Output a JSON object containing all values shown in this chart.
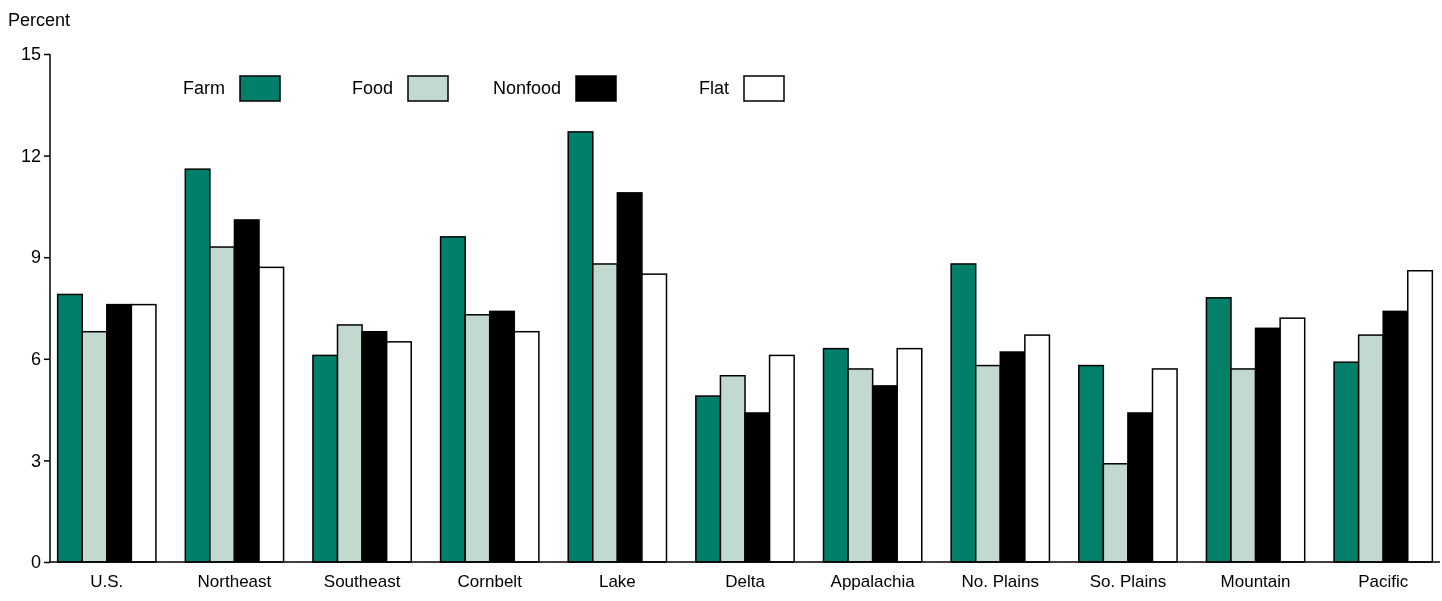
{
  "chart_data": {
    "type": "bar",
    "ylabel": "Percent",
    "categories": [
      "U.S.",
      "Northeast",
      "Southeast",
      "Cornbelt",
      "Lake",
      "Delta",
      "Appalachia",
      "No. Plains",
      "So. Plains",
      "Mountain",
      "Pacific"
    ],
    "series": [
      {
        "name": "Farm",
        "color": "#00806a",
        "values": [
          7.9,
          11.6,
          6.1,
          9.6,
          12.7,
          4.9,
          6.3,
          8.8,
          5.8,
          7.8,
          5.9
        ]
      },
      {
        "name": "Food",
        "color": "#c2d9d0",
        "values": [
          6.8,
          9.3,
          7.0,
          7.3,
          8.8,
          5.5,
          5.7,
          5.8,
          2.9,
          5.7,
          6.7
        ]
      },
      {
        "name": "Nonfood",
        "color": "#000000",
        "values": [
          7.6,
          10.1,
          6.8,
          7.4,
          10.9,
          4.4,
          5.2,
          6.2,
          4.4,
          6.9,
          7.4
        ]
      },
      {
        "name": "Flat",
        "color": "#ffffff",
        "values": [
          7.6,
          8.7,
          6.5,
          6.8,
          8.5,
          6.1,
          6.3,
          6.7,
          5.7,
          7.2,
          8.6
        ]
      }
    ],
    "ylim": [
      0,
      15
    ],
    "yticks": [
      0,
      3,
      6,
      9,
      12,
      15
    ],
    "grid": false,
    "legend": "top left"
  }
}
